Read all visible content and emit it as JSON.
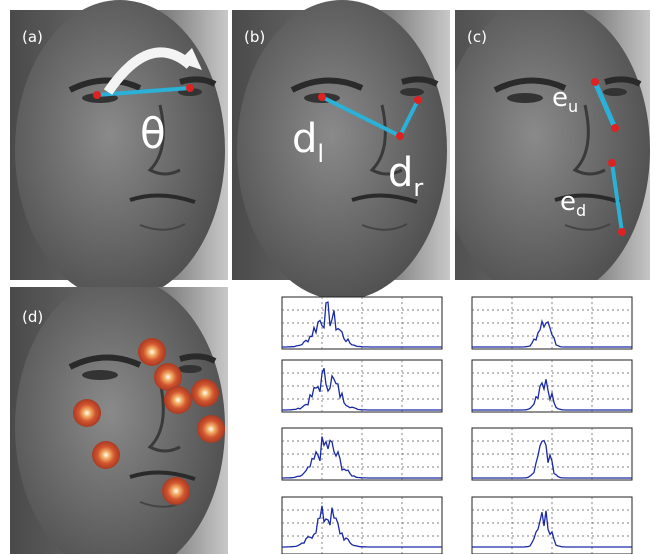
{
  "panels": [
    {
      "label": "(a)",
      "annotations": [
        {
          "text": "θ"
        }
      ]
    },
    {
      "label": "(b)",
      "annotations": [
        {
          "text": "d",
          "subscript": "l"
        },
        {
          "text": "d",
          "subscript": "r"
        }
      ]
    },
    {
      "label": "(c)",
      "annotations": [
        {
          "text": "e",
          "subscript": "u"
        },
        {
          "text": "e",
          "subscript": "d"
        }
      ]
    },
    {
      "label": "(d)",
      "annotations": []
    }
  ]
}
